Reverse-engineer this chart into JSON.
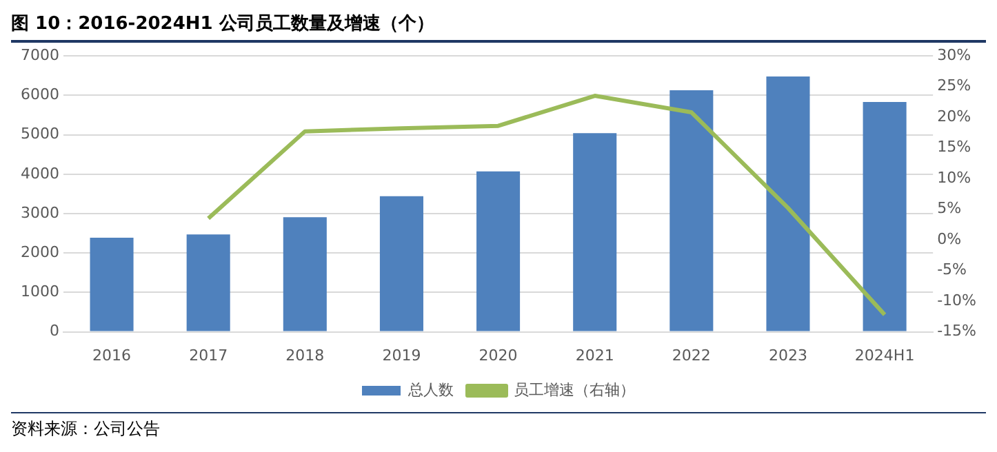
{
  "chart_data": {
    "type": "bar",
    "title": "图 10：2016-2024H1 公司员工数量及增速（个）",
    "categories": [
      "2016",
      "2017",
      "2018",
      "2019",
      "2020",
      "2021",
      "2022",
      "2023",
      "2024H1"
    ],
    "series": [
      {
        "name": "总人数",
        "color": "#4f81bd",
        "values": [
          2390,
          2470,
          2910,
          3440,
          4070,
          5040,
          6130,
          6480,
          5830
        ]
      },
      {
        "name": "员工增速（右轴）",
        "type": "line",
        "axis": "y2",
        "color": "#9bbb59",
        "values": [
          null,
          3.5,
          17.7,
          18.2,
          18.6,
          23.5,
          20.8,
          5.2,
          -12.2
        ]
      }
    ],
    "ylim": [
      0,
      7000
    ],
    "yticks": [
      0,
      1000,
      2000,
      3000,
      4000,
      5000,
      6000,
      7000
    ],
    "y2lim": [
      -15,
      30
    ],
    "y2ticks": [
      {
        "value": -15,
        "label": "-15%"
      },
      {
        "value": -10,
        "label": "-10%"
      },
      {
        "value": -5,
        "label": "-5%"
      },
      {
        "value": 0,
        "label": "0%"
      },
      {
        "value": 5,
        "label": "5%"
      },
      {
        "value": 10,
        "label": "10%"
      },
      {
        "value": 15,
        "label": "15%"
      },
      {
        "value": 20,
        "label": "20%"
      },
      {
        "value": 25,
        "label": "25%"
      },
      {
        "value": 30,
        "label": "30%"
      }
    ],
    "grid": "y",
    "legend": "bottom",
    "marker": "none",
    "line_style": "solid",
    "annotations": [
      "资料来源：公司公告"
    ]
  }
}
